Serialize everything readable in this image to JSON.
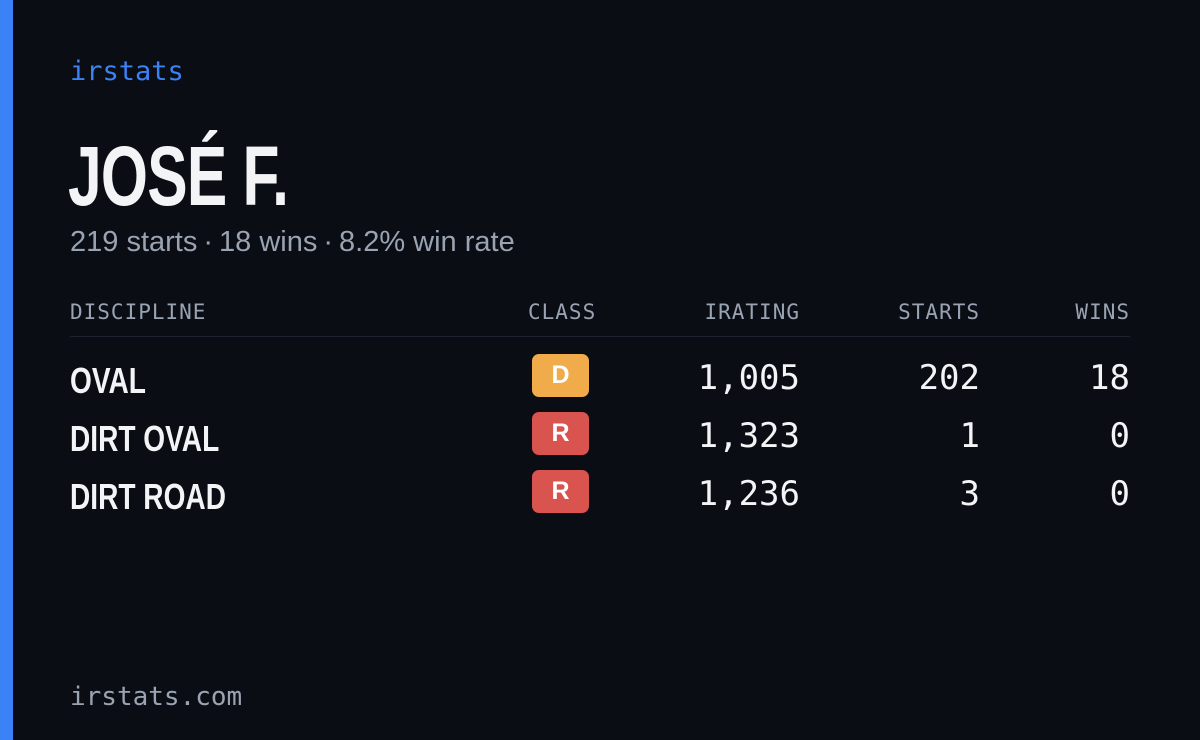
{
  "brand": "irstats",
  "driver": {
    "name": "JOSÉ F.",
    "starts": "219 starts",
    "wins": "18 wins",
    "win_rate": "8.2% win rate",
    "separator": "·"
  },
  "table": {
    "headers": {
      "discipline": "DISCIPLINE",
      "class": "CLASS",
      "irating": "IRATING",
      "starts": "STARTS",
      "wins": "WINS"
    },
    "rows": [
      {
        "discipline": "OVAL",
        "class": "D",
        "class_color": "#f0ab4b",
        "irating": "1,005",
        "starts": "202",
        "wins": "18"
      },
      {
        "discipline": "DIRT OVAL",
        "class": "R",
        "class_color": "#d9534f",
        "irating": "1,323",
        "starts": "1",
        "wins": "0"
      },
      {
        "discipline": "DIRT ROAD",
        "class": "R",
        "class_color": "#d9534f",
        "irating": "1,236",
        "starts": "3",
        "wins": "0"
      }
    ]
  },
  "footer": "irstats.com",
  "colors": {
    "accent": "#3b82f6",
    "background": "#0a0d14"
  }
}
